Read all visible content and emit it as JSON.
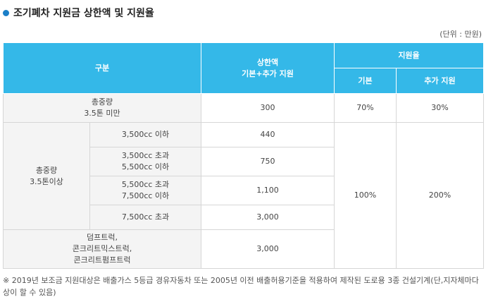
{
  "title": "조기폐차 지원금 상한액 및 지원율",
  "unit": "(단위 : 만원)",
  "header": {
    "division": "구분",
    "limit_line1": "상한액",
    "limit_line2": "기본+추가 지원",
    "rate": "지원율",
    "rate_basic": "기본",
    "rate_extra": "추가 지원"
  },
  "row_small": {
    "label_line1": "총중량",
    "label_line2": "3.5톤 미만",
    "limit": "300",
    "rate_basic": "70%",
    "rate_extra": "30%"
  },
  "row_large": {
    "label_line1": "총중량",
    "label_line2": "3.5톤이상",
    "rate_basic": "100%",
    "rate_extra": "200%",
    "subrows": [
      {
        "line1": "3,500cc 이하",
        "line2": "",
        "limit": "440"
      },
      {
        "line1": "3,500cc 초과",
        "line2": "5,500cc 이하",
        "limit": "750"
      },
      {
        "line1": "5,500cc 초과",
        "line2": "7,500cc 이하",
        "limit": "1,100"
      },
      {
        "line1": "7,500cc 초과",
        "line2": "",
        "limit": "3,000"
      }
    ]
  },
  "row_special": {
    "line1": "덤프트럭,",
    "line2": "콘크리트믹스트럭,",
    "line3": "콘크리트펌프트럭",
    "limit": "3,000"
  },
  "footnote": "※ 2019년 보조금 지원대상은 배출가스 5등급 경유자동차 또는 2005년 이전 배출허용기준을 적용하여 제작된 도로용 3종 건설기계(단,지자체마다 상이 할 수 있음)"
}
